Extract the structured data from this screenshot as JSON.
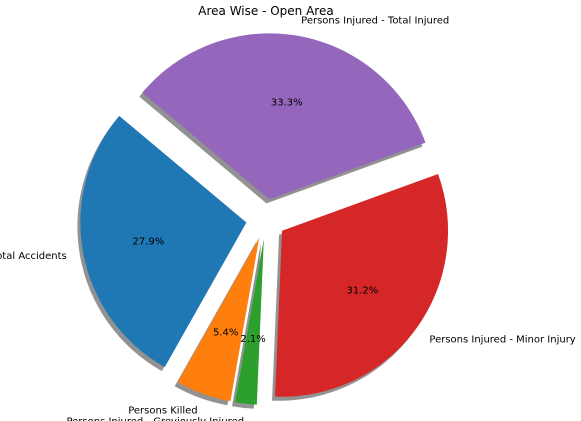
{
  "chart_data": {
    "type": "pie",
    "title": "Area Wise - Open Area",
    "slices": [
      {
        "label": "Total Accidents",
        "value": 27.9,
        "pct_label": "27.9%",
        "color": "#1f77b4",
        "exploded": true
      },
      {
        "label": "Persons Killed",
        "value": 5.4,
        "pct_label": "5.4%",
        "color": "#ff7f0e",
        "exploded": true
      },
      {
        "label": "Persons Injured - Greviously Injured",
        "value": 2.1,
        "pct_label": "2.1%",
        "color": "#2ca02c",
        "exploded": true
      },
      {
        "label": "Persons Injured - Minor Injury",
        "value": 31.2,
        "pct_label": "31.2%",
        "color": "#d62728",
        "exploded": true
      },
      {
        "label": "Persons Injured - Total Injured",
        "value": 33.3,
        "pct_label": "33.3%",
        "color": "#9467bd",
        "exploded": true
      }
    ],
    "start_angle_deg": 140,
    "direction": "counterclockwise",
    "shadow": true,
    "legend": "none"
  }
}
